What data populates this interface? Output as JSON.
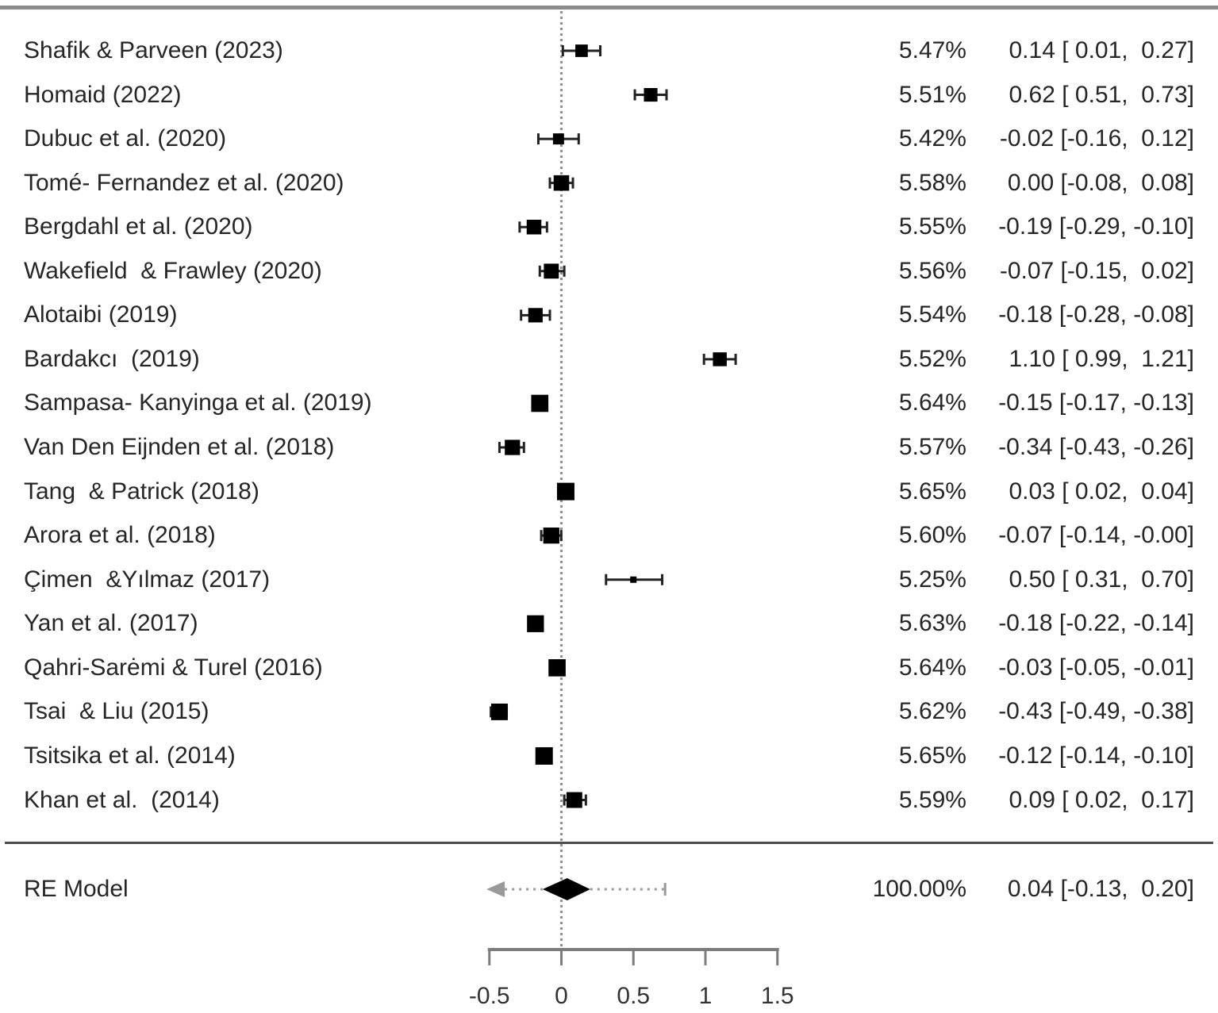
{
  "chart_data": {
    "type": "forest",
    "title": "",
    "x_axis": {
      "ticks": [
        -0.5,
        0,
        0.5,
        1,
        1.5
      ],
      "tick_labels": [
        "-0.5",
        "0",
        "0.5",
        "1",
        "1.5"
      ],
      "range": [
        -0.5,
        1.5
      ],
      "reference_line": 0
    },
    "colors": {
      "marker": "#000000",
      "whisker": "#222222",
      "axis_gray": "#7d7d7d",
      "rule_gray": "#8a8a8a",
      "separator_gray": "#4d4d4d",
      "dotted_gray": "#909090",
      "pi_gray": "#9a9a9a"
    },
    "studies": [
      {
        "label": "Shafik & Parveen (2023)",
        "weight": 5.47,
        "weight_label": "5.47%",
        "estimate": 0.14,
        "ci_lower": 0.01,
        "ci_upper": 0.27,
        "estimate_label": "0.14 [ 0.01,  0.27]"
      },
      {
        "label": "Homaid (2022)",
        "weight": 5.51,
        "weight_label": "5.51%",
        "estimate": 0.62,
        "ci_lower": 0.51,
        "ci_upper": 0.73,
        "estimate_label": "0.62 [ 0.51,  0.73]"
      },
      {
        "label": "Dubuc et al. (2020)",
        "weight": 5.42,
        "weight_label": "5.42%",
        "estimate": -0.02,
        "ci_lower": -0.16,
        "ci_upper": 0.12,
        "estimate_label": "-0.02 [-0.16,  0.12]"
      },
      {
        "label": "Tomé- Fernandez et al. (2020)",
        "weight": 5.58,
        "weight_label": "5.58%",
        "estimate": 0.0,
        "ci_lower": -0.08,
        "ci_upper": 0.08,
        "estimate_label": "0.00 [-0.08,  0.08]"
      },
      {
        "label": "Bergdahl et al. (2020)",
        "weight": 5.55,
        "weight_label": "5.55%",
        "estimate": -0.19,
        "ci_lower": -0.29,
        "ci_upper": -0.1,
        "estimate_label": "-0.19 [-0.29, -0.10]"
      },
      {
        "label": "Wakefield  & Frawley (2020)",
        "weight": 5.56,
        "weight_label": "5.56%",
        "estimate": -0.07,
        "ci_lower": -0.15,
        "ci_upper": 0.02,
        "estimate_label": "-0.07 [-0.15,  0.02]"
      },
      {
        "label": "Alotaibi (2019)",
        "weight": 5.54,
        "weight_label": "5.54%",
        "estimate": -0.18,
        "ci_lower": -0.28,
        "ci_upper": -0.08,
        "estimate_label": "-0.18 [-0.28, -0.08]"
      },
      {
        "label": "Bardakcı  (2019)",
        "weight": 5.52,
        "weight_label": "5.52%",
        "estimate": 1.1,
        "ci_lower": 0.99,
        "ci_upper": 1.21,
        "estimate_label": "1.10 [ 0.99,  1.21]"
      },
      {
        "label": "Sampasa- Kanyinga et al. (2019)",
        "weight": 5.64,
        "weight_label": "5.64%",
        "estimate": -0.15,
        "ci_lower": -0.17,
        "ci_upper": -0.13,
        "estimate_label": "-0.15 [-0.17, -0.13]"
      },
      {
        "label": "Van Den Eijnden et al. (2018)",
        "weight": 5.57,
        "weight_label": "5.57%",
        "estimate": -0.34,
        "ci_lower": -0.43,
        "ci_upper": -0.26,
        "estimate_label": "-0.34 [-0.43, -0.26]"
      },
      {
        "label": "Tang  & Patrick (2018)",
        "weight": 5.65,
        "weight_label": "5.65%",
        "estimate": 0.03,
        "ci_lower": 0.02,
        "ci_upper": 0.04,
        "estimate_label": "0.03 [ 0.02,  0.04]"
      },
      {
        "label": "Arora et al. (2018)",
        "weight": 5.6,
        "weight_label": "5.60%",
        "estimate": -0.07,
        "ci_lower": -0.14,
        "ci_upper": -0.001,
        "estimate_label": "-0.07 [-0.14, -0.00]"
      },
      {
        "label": "Çimen  &Yılmaz (2017)",
        "weight": 5.25,
        "weight_label": "5.25%",
        "estimate": 0.5,
        "ci_lower": 0.31,
        "ci_upper": 0.7,
        "estimate_label": "0.50 [ 0.31,  0.70]"
      },
      {
        "label": "Yan et al. (2017)",
        "weight": 5.63,
        "weight_label": "5.63%",
        "estimate": -0.18,
        "ci_lower": -0.22,
        "ci_upper": -0.14,
        "estimate_label": "-0.18 [-0.22, -0.14]"
      },
      {
        "label": "Qahri-Sarėmi & Turel (2016)",
        "weight": 5.64,
        "weight_label": "5.64%",
        "estimate": -0.03,
        "ci_lower": -0.05,
        "ci_upper": -0.01,
        "estimate_label": "-0.03 [-0.05, -0.01]"
      },
      {
        "label": "Tsai  & Liu (2015)",
        "weight": 5.62,
        "weight_label": "5.62%",
        "estimate": -0.43,
        "ci_lower": -0.49,
        "ci_upper": -0.38,
        "estimate_label": "-0.43 [-0.49, -0.38]"
      },
      {
        "label": "Tsitsika et al. (2014)",
        "weight": 5.65,
        "weight_label": "5.65%",
        "estimate": -0.12,
        "ci_lower": -0.14,
        "ci_upper": -0.1,
        "estimate_label": "-0.12 [-0.14, -0.10]"
      },
      {
        "label": "Khan et al.  (2014)",
        "weight": 5.59,
        "weight_label": "5.59%",
        "estimate": 0.09,
        "ci_lower": 0.02,
        "ci_upper": 0.17,
        "estimate_label": "0.09 [ 0.02,  0.17]"
      }
    ],
    "overall": {
      "label": "RE Model",
      "weight_label": "100.00%",
      "estimate": 0.04,
      "ci_lower": -0.13,
      "ci_upper": 0.2,
      "estimate_label": "0.04 [-0.13,  0.20]",
      "prediction_interval": {
        "lower_display": -0.52,
        "lower_arrow": true,
        "upper": 0.72
      }
    }
  }
}
